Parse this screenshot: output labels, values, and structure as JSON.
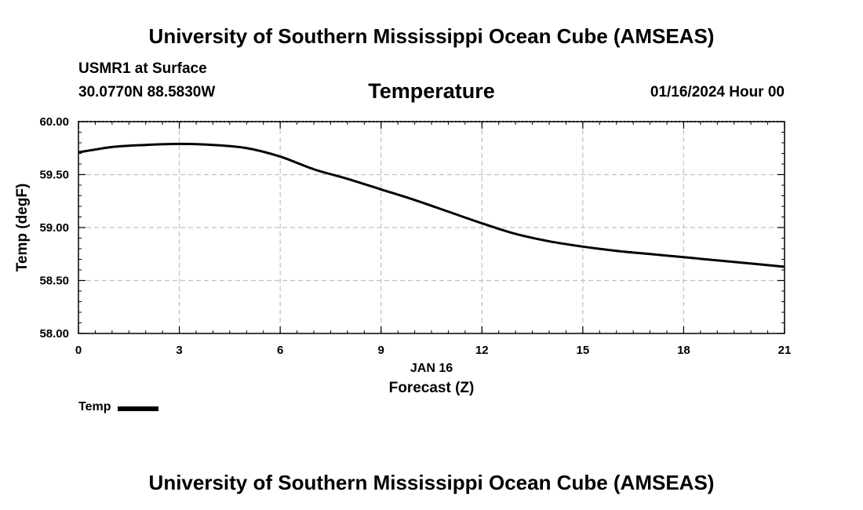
{
  "header": {
    "title": "University of Southern Mississippi Ocean Cube (AMSEAS)",
    "station": "USMR1 at Surface",
    "coords": "30.0770N  88.5830W",
    "variable": "Temperature",
    "datetime": "01/16/2024 Hour 00"
  },
  "footer": {
    "title": "University of Southern Mississippi Ocean Cube (AMSEAS)"
  },
  "legend": {
    "label": "Temp",
    "color": "#000000"
  },
  "chart_data": {
    "type": "line",
    "title": "Temperature",
    "xlabel": "Forecast (Z)",
    "xlabel_date": "JAN 16",
    "ylabel": "Temp (degF)",
    "xlim": [
      0,
      21
    ],
    "ylim": [
      58.0,
      60.0
    ],
    "xticks": [
      0,
      3,
      6,
      9,
      12,
      15,
      18,
      21
    ],
    "xtick_labels": [
      "0",
      "3",
      "6",
      "9",
      "12",
      "15",
      "18",
      "21"
    ],
    "yticks": [
      58.0,
      58.5,
      59.0,
      59.5,
      60.0
    ],
    "ytick_labels": [
      "58.00",
      "58.50",
      "59.00",
      "59.50",
      "60.00"
    ],
    "grid": true,
    "series": [
      {
        "name": "Temp",
        "color": "#000000",
        "x": [
          0,
          1,
          2,
          3,
          4,
          5,
          6,
          7,
          8,
          9,
          10,
          11,
          12,
          13,
          14,
          15,
          16,
          17,
          18,
          19,
          20,
          21
        ],
        "y": [
          59.71,
          59.76,
          59.78,
          59.79,
          59.78,
          59.75,
          59.67,
          59.55,
          59.46,
          59.36,
          59.26,
          59.15,
          59.04,
          58.94,
          58.87,
          58.82,
          58.78,
          58.75,
          58.72,
          58.69,
          58.66,
          58.63
        ]
      }
    ]
  }
}
